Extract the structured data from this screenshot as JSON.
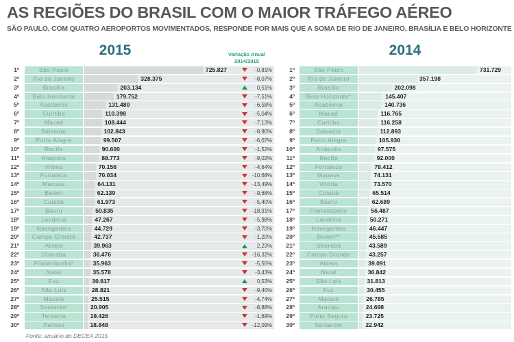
{
  "header": {
    "title": "AS REGIÕES DO BRASIL COM O MAIOR TRÁFEGO AÉREO",
    "subtitle": "SÃO PAULO, COM QUATRO AEROPORTOS MOVIMENTADOS, RESPONDE POR MAIS QUE A SOMA DE RIO DE JANEIRO, BRASÍLIA E BELO HORIZONTE"
  },
  "footer": {
    "source": "Fonte: anuário do DECEA 2015"
  },
  "colors": {
    "title_gray": "#58585a",
    "year_header_teal": "#2b6f80",
    "variation_green": "#23a07f",
    "mint_cell": "#b9e3d2",
    "left_panel_gray": "#e6e9e9",
    "right_panel_mint": "#eaf3ef",
    "down_arrow_red": "#cf3430",
    "up_arrow_green": "#179b52"
  },
  "chart_data": {
    "type": "bar",
    "orientation": "horizontal",
    "title": "AS REGIÕES DO BRASIL COM O MAIOR TRÁFEGO AÉREO",
    "subtitle": "SÃO PAULO, COM QUATRO AEROPORTOS MOVIMENTADOS, RESPONDE POR MAIS QUE A SOMA DE RIO DE JANEIRO, BRASÍLIA E BELO HORIZONTE",
    "source": "Fonte: anuário do DECEA 2015",
    "legend_position": "none",
    "grid": false,
    "tables": [
      {
        "year": "2015",
        "variation_header_line1": "Variação Anual",
        "variation_header_line2": "2014/2015",
        "value_scale_max": 725827,
        "rows": [
          {
            "rank": "1º",
            "name": "São Paulo",
            "value": "725.827",
            "change": "-0,81%",
            "direction": "down"
          },
          {
            "rank": "2º",
            "name": "Rio de Janeiro",
            "value": "328.375",
            "change": "-8,07%",
            "direction": "down"
          },
          {
            "rank": "3º",
            "name": "Brasília",
            "value": "203.134",
            "change": "0,51%",
            "direction": "up"
          },
          {
            "rank": "4º",
            "name": "Belo Horizonte",
            "value": "179.752",
            "change": "-7,51%",
            "direction": "down"
          },
          {
            "rank": "5º",
            "name": "Academia",
            "value": "131.480",
            "change": "-6,58%",
            "direction": "down"
          },
          {
            "rank": "6º",
            "name": "Curitiba",
            "value": "110.398",
            "change": "-5,04%",
            "direction": "down"
          },
          {
            "rank": "7º",
            "name": "Macaé",
            "value": "108.444",
            "change": "-7,13%",
            "direction": "down"
          },
          {
            "rank": "8º",
            "name": "Salvador",
            "value": "102.843",
            "change": "-8,90%",
            "direction": "down"
          },
          {
            "rank": "9º",
            "name": "Porto Alegre",
            "value": "99.507",
            "change": "-6,07%",
            "direction": "down"
          },
          {
            "rank": "10º",
            "name": "Recife",
            "value": "90.600",
            "change": "-1,52%",
            "direction": "down"
          },
          {
            "rank": "11º",
            "name": "Anápolis",
            "value": "88.773",
            "change": "-9,02%",
            "direction": "down"
          },
          {
            "rank": "12º",
            "name": "Vitória",
            "value": "70.156",
            "change": "-4,64%",
            "direction": "down"
          },
          {
            "rank": "13º",
            "name": "Fortaleza",
            "value": "70.034",
            "change": "-10,68%",
            "direction": "down"
          },
          {
            "rank": "14º",
            "name": "Manaus",
            "value": "64.131",
            "change": "-13,49%",
            "direction": "down"
          },
          {
            "rank": "15º",
            "name": "Belém",
            "value": "62.139",
            "change": "-9,68%",
            "direction": "down"
          },
          {
            "rank": "16º",
            "name": "Cuiabá",
            "value": "61.973",
            "change": "-5,40%",
            "direction": "down"
          },
          {
            "rank": "17º",
            "name": "Bauru",
            "value": "50.835",
            "change": "-18,91%",
            "direction": "down"
          },
          {
            "rank": "18º",
            "name": "Londrina",
            "value": "47.267",
            "change": "-5,98%",
            "direction": "down"
          },
          {
            "rank": "19º",
            "name": "Navegantes",
            "value": "44.729",
            "change": "-3,70%",
            "direction": "down"
          },
          {
            "rank": "20º",
            "name": "Campo Grande",
            "value": "42.737",
            "change": "-1,20%",
            "direction": "down"
          },
          {
            "rank": "21º",
            "name": "Aldeia",
            "value": "39.963",
            "change": "2,23%",
            "direction": "up"
          },
          {
            "rank": "22º",
            "name": "Uberaba",
            "value": "36.476",
            "change": "-16,32%",
            "direction": "down"
          },
          {
            "rank": "23º",
            "name": "Florianópolis*",
            "value": "35.963",
            "change": "-5,55%",
            "direction": "down"
          },
          {
            "rank": "24º",
            "name": "Natal",
            "value": "35.578",
            "change": "-3,43%",
            "direction": "down"
          },
          {
            "rank": "25º",
            "name": "Foz",
            "value": "30.617",
            "change": "0,53%",
            "direction": "up"
          },
          {
            "rank": "26º",
            "name": "São Luís",
            "value": "28.821",
            "change": "-9,40%",
            "direction": "down"
          },
          {
            "rank": "27º",
            "name": "Maceió",
            "value": "25.515",
            "change": "-4,74%",
            "direction": "down"
          },
          {
            "rank": "28º",
            "name": "Santarém",
            "value": "20.905",
            "change": "-8,88%",
            "direction": "down"
          },
          {
            "rank": "29º",
            "name": "Teresina",
            "value": "19.426",
            "change": "-1,69%",
            "direction": "down"
          },
          {
            "rank": "30º",
            "name": "Palmas",
            "value": "18.848",
            "change": "-12,09%",
            "direction": "down"
          }
        ]
      },
      {
        "year": "2014",
        "value_scale_max": 731729,
        "rows": [
          {
            "rank": "1º",
            "name": "São Paulo",
            "value": "731.729"
          },
          {
            "rank": "2º",
            "name": "Rio de Janeiro",
            "value": "357.198"
          },
          {
            "rank": "3º",
            "name": "Brasília",
            "value": "202.098"
          },
          {
            "rank": "4º",
            "name": "Belo Horizonte*",
            "value": "145.407"
          },
          {
            "rank": "5º",
            "name": "Academia",
            "value": "140.736"
          },
          {
            "rank": "6º",
            "name": "Macaé",
            "value": "116.765"
          },
          {
            "rank": "7º",
            "name": "Curitiba",
            "value": "116.258"
          },
          {
            "rank": "8º",
            "name": "Salvador",
            "value": "112.893"
          },
          {
            "rank": "9º",
            "name": "Porto Alegre",
            "value": "105.938"
          },
          {
            "rank": "10º",
            "name": "Anápolis",
            "value": "97.575"
          },
          {
            "rank": "11º",
            "name": "Recife",
            "value": "92.000"
          },
          {
            "rank": "12º",
            "name": "Fortaleza",
            "value": "78.412"
          },
          {
            "rank": "13º",
            "name": "Manaus",
            "value": "74.131"
          },
          {
            "rank": "14º",
            "name": "Vitória",
            "value": "73.570"
          },
          {
            "rank": "15º",
            "name": "Cuiabá",
            "value": "65.514"
          },
          {
            "rank": "16º",
            "name": "Bauru",
            "value": "62.689"
          },
          {
            "rank": "17º",
            "name": "Florianópolis",
            "value": "56.487"
          },
          {
            "rank": "18º",
            "name": "Londrina",
            "value": "50.271"
          },
          {
            "rank": "19º",
            "name": "Navegantes",
            "value": "46.447"
          },
          {
            "rank": "20º",
            "name": "Belém**",
            "value": "45.585"
          },
          {
            "rank": "21º",
            "name": "Uberaba",
            "value": "43.589"
          },
          {
            "rank": "22º",
            "name": "Campo Grande",
            "value": "43.257"
          },
          {
            "rank": "23º",
            "name": "Aldeia",
            "value": "39.091"
          },
          {
            "rank": "24º",
            "name": "Natal",
            "value": "36.842"
          },
          {
            "rank": "25º",
            "name": "São Luís",
            "value": "31.813"
          },
          {
            "rank": "26º",
            "name": "Foz",
            "value": "30.455"
          },
          {
            "rank": "27º",
            "name": "Maceió",
            "value": "26.785"
          },
          {
            "rank": "28º",
            "name": "Aracaju",
            "value": "24.698"
          },
          {
            "rank": "29º",
            "name": "Porto Seguro",
            "value": "23.725"
          },
          {
            "rank": "30º",
            "name": "Santarém",
            "value": "22.942"
          }
        ]
      }
    ]
  }
}
